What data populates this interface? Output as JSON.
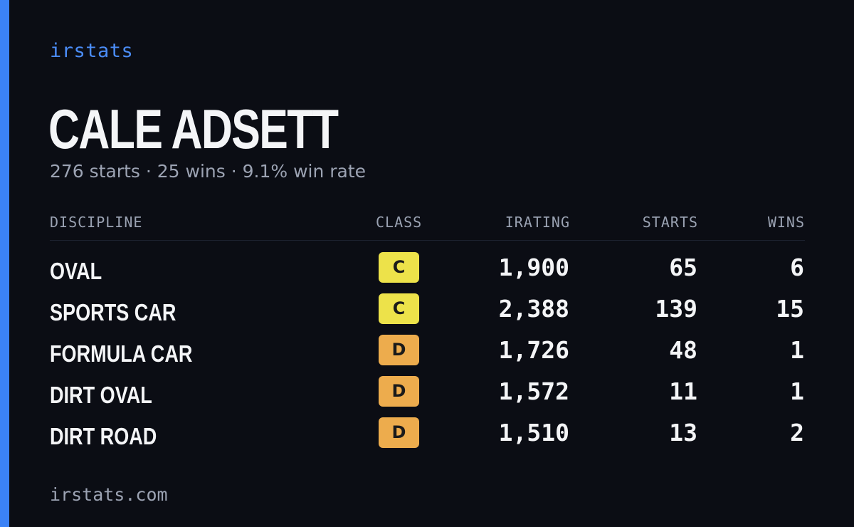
{
  "brand": "irstats",
  "driver": {
    "name": "CALE ADSETT",
    "summary": "276 starts · 25 wins · 9.1% win rate"
  },
  "table": {
    "headers": {
      "discipline": "DISCIPLINE",
      "class": "CLASS",
      "irating": "IRATING",
      "starts": "STARTS",
      "wins": "WINS"
    },
    "rows": [
      {
        "discipline": "OVAL",
        "class": "C",
        "irating": "1,900",
        "starts": "65",
        "wins": "6"
      },
      {
        "discipline": "SPORTS CAR",
        "class": "C",
        "irating": "2,388",
        "starts": "139",
        "wins": "15"
      },
      {
        "discipline": "FORMULA CAR",
        "class": "D",
        "irating": "1,726",
        "starts": "48",
        "wins": "1"
      },
      {
        "discipline": "DIRT OVAL",
        "class": "D",
        "irating": "1,572",
        "starts": "11",
        "wins": "1"
      },
      {
        "discipline": "DIRT ROAD",
        "class": "D",
        "irating": "1,510",
        "starts": "13",
        "wins": "2"
      }
    ]
  },
  "class_colors": {
    "C": "#ede24a",
    "D": "#edac4d"
  },
  "accent_color": "#3b82f6",
  "footer": "irstats.com"
}
